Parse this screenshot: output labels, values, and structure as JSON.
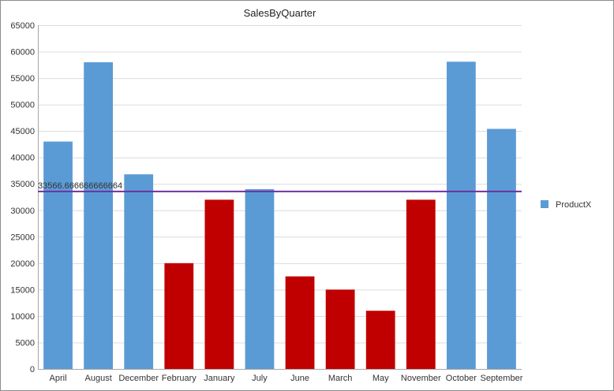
{
  "chart_data": {
    "type": "bar",
    "title": "SalesByQuarter",
    "categories": [
      "April",
      "August",
      "December",
      "February",
      "January",
      "July",
      "June",
      "March",
      "May",
      "November",
      "October",
      "September"
    ],
    "series": [
      {
        "name": "ProductX",
        "values": [
          43000,
          58000,
          36800,
          20000,
          32000,
          34000,
          17500,
          15000,
          11000,
          32000,
          58100,
          45400
        ],
        "color": "#5b9bd5",
        "below_average_color": "#c00000"
      }
    ],
    "ylim": [
      0,
      65000
    ],
    "yticks": [
      0,
      5000,
      10000,
      15000,
      20000,
      25000,
      30000,
      35000,
      40000,
      45000,
      50000,
      55000,
      60000,
      65000
    ],
    "average_line": {
      "value": 33566.666666666664,
      "label": "33566.666666666664",
      "color": "#7030a0"
    },
    "grid": true,
    "legend_position": "right"
  }
}
